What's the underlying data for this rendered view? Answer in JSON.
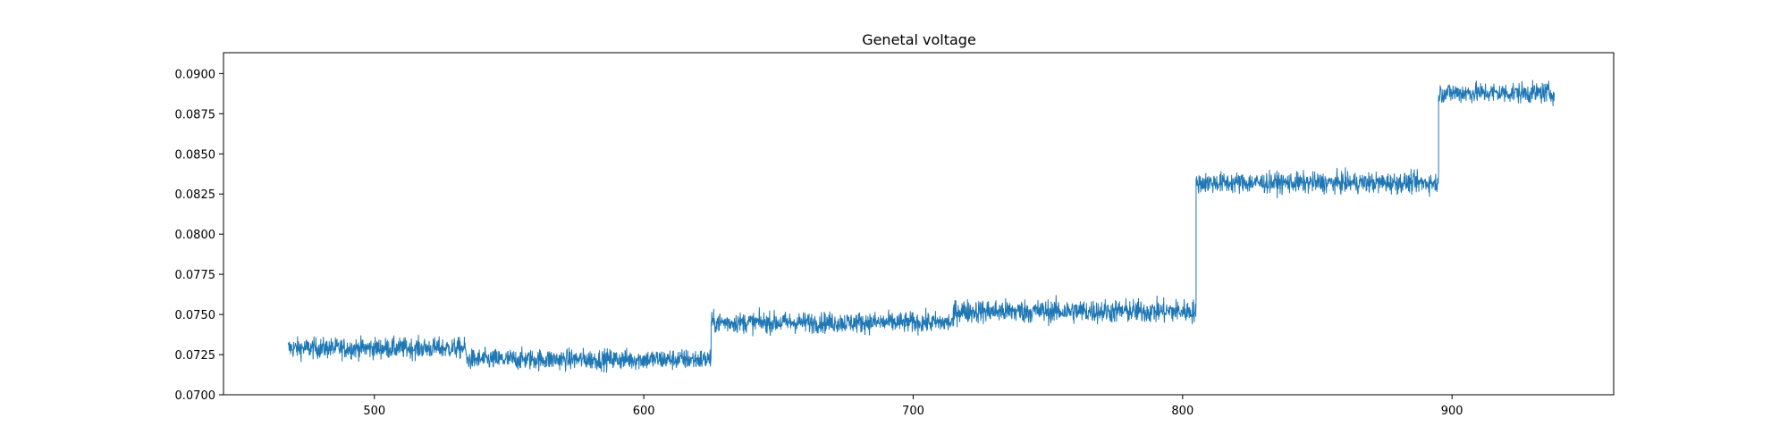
{
  "chart_data": {
    "type": "line",
    "title": "Genetal voltage",
    "xlabel": "",
    "ylabel": "",
    "xlim": [
      444,
      960
    ],
    "ylim": [
      0.07,
      0.0913
    ],
    "xticks": [
      500,
      600,
      700,
      800,
      900
    ],
    "xtick_labels": [
      "500",
      "600",
      "700",
      "800",
      "900"
    ],
    "yticks": [
      0.07,
      0.0725,
      0.075,
      0.0775,
      0.08,
      0.0825,
      0.085,
      0.0875,
      0.09
    ],
    "ytick_labels": [
      "0.0700",
      "0.0725",
      "0.0750",
      "0.0775",
      "0.0800",
      "0.0825",
      "0.0850",
      "0.0875",
      "0.0900"
    ],
    "grid": false,
    "legend": "none",
    "series": [
      {
        "color": "#1f77b4",
        "segments": [
          {
            "x_start": 468,
            "x_end": 534,
            "mean": 0.0729,
            "noise": 0.0007
          },
          {
            "x_start": 534,
            "x_end": 625,
            "mean": 0.0722,
            "noise": 0.0007
          },
          {
            "x_start": 625,
            "x_end": 715,
            "mean": 0.0745,
            "noise": 0.0007
          },
          {
            "x_start": 715,
            "x_end": 805,
            "mean": 0.0752,
            "noise": 0.0008
          },
          {
            "x_start": 805,
            "x_end": 895,
            "mean": 0.0832,
            "noise": 0.0007
          },
          {
            "x_start": 895,
            "x_end": 938,
            "mean": 0.0888,
            "noise": 0.0007
          }
        ]
      }
    ]
  }
}
